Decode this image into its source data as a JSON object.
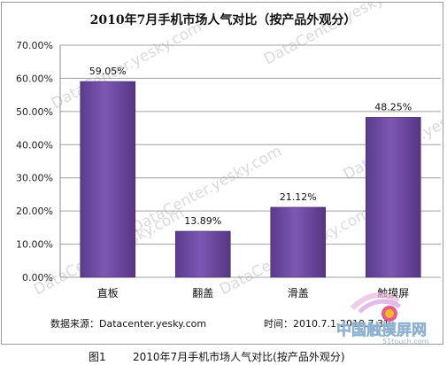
{
  "chart_data": {
    "type": "bar",
    "title": "2010年7月手机市场人气对比（按产品外观分）",
    "categories": [
      "直板",
      "翻盖",
      "滑盖",
      "触摸屏"
    ],
    "values": [
      59.05,
      13.89,
      21.12,
      48.25
    ],
    "value_labels": [
      "59.05%",
      "13.89%",
      "21.12%",
      "48.25%"
    ],
    "ylim": [
      0,
      70
    ],
    "yticks": [
      "0.00%",
      "10.00%",
      "20.00%",
      "30.00%",
      "40.00%",
      "50.00%",
      "60.00%",
      "70.00%"
    ],
    "xlabel": "",
    "ylabel": "",
    "grid": true,
    "bar_color": "#6f4aa3"
  },
  "footer": {
    "source": "数据来源：Datacenter.yesky.com",
    "time": "时间：2010.7.1-2010.7.31"
  },
  "watermark": "DataCenter.yesky.com",
  "caption": {
    "figure": "图1",
    "text": "2010年7月手机市场人气对比(按产品外观分)"
  },
  "logo": {
    "text": "中国触摸屏网",
    "url_text": "51touch.com"
  }
}
